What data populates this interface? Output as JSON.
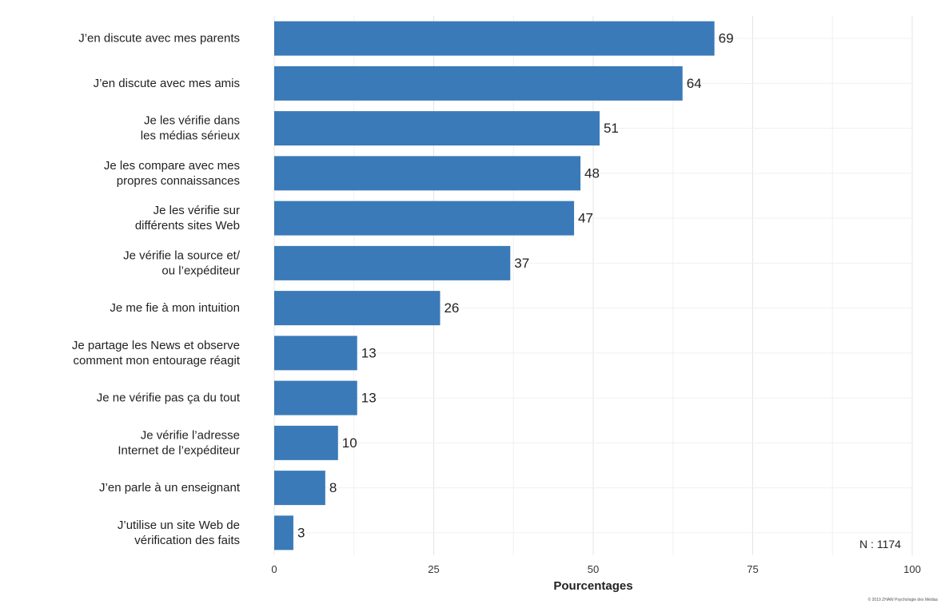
{
  "chart_data": {
    "type": "bar",
    "orientation": "horizontal",
    "categories": [
      [
        "J’en discute avec mes parents"
      ],
      [
        "J’en discute avec mes amis"
      ],
      [
        "Je les vérifie dans",
        "les médias sérieux"
      ],
      [
        "Je les compare avec mes",
        "propres connaissances"
      ],
      [
        "Je les vérifie sur",
        "différents sites Web"
      ],
      [
        "Je vérifie la source et/",
        "ou l’expéditeur"
      ],
      [
        "Je me fie à mon intuition"
      ],
      [
        "Je partage les News et observe",
        "comment mon entourage réagit"
      ],
      [
        "Je ne vérifie pas ça du tout"
      ],
      [
        "Je vérifie l’adresse",
        "Internet de l’expéditeur"
      ],
      [
        "J’en parle à un enseignant"
      ],
      [
        "J’utilise un site Web de",
        "vérification des faits"
      ]
    ],
    "values": [
      69,
      64,
      51,
      48,
      47,
      37,
      26,
      13,
      13,
      10,
      8,
      3
    ],
    "value_labels": [
      "69",
      "64",
      "51",
      "48",
      "47",
      "37",
      "26",
      "13",
      "13",
      "10",
      "8",
      "3"
    ],
    "xlabel": "Pourcentages",
    "xlim": [
      0,
      100
    ],
    "xticks": [
      0,
      25,
      50,
      75,
      100
    ],
    "xtick_labels": [
      "0",
      "25",
      "50",
      "75",
      "100"
    ],
    "grid": true,
    "bar_color": "#3a7ab8",
    "annotation": "N : 1174",
    "credit": "© 2019 ZHAW Psychologie des Médias"
  }
}
